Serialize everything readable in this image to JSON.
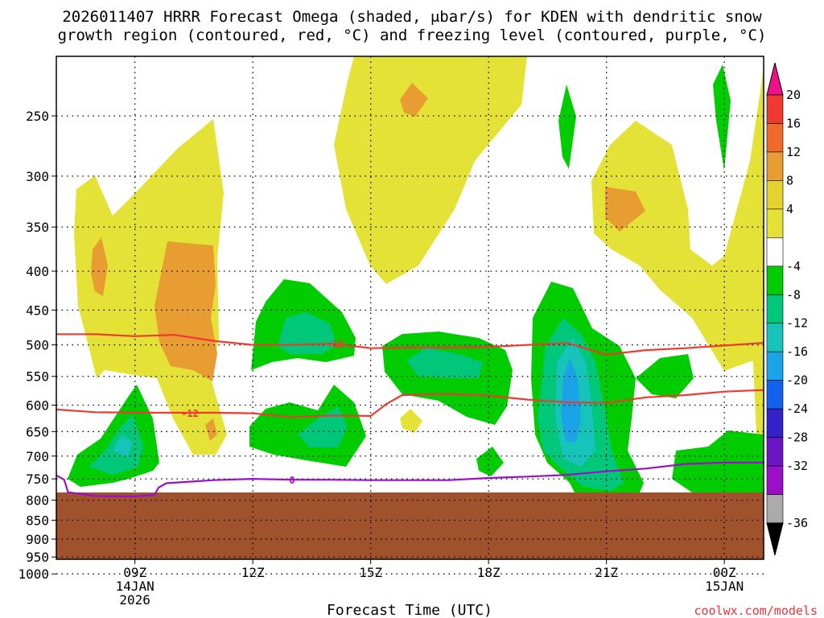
{
  "chart_data": {
    "type": "contour",
    "title_lines": [
      "2026011407 HRRR Forecast Omega (shaded, μbar/s) for KDEN with dendritic snow",
      "growth region (contoured, red, °C) and freezing level (contoured, purple, °C)"
    ],
    "xlabel": "Forecast Time (UTC)",
    "credit": "coolwx.com/models",
    "x_range_hours": [
      7.0,
      25.0
    ],
    "x_ticks": [
      {
        "hour": 9,
        "lines": [
          "09Z",
          "14JAN",
          "2026"
        ]
      },
      {
        "hour": 12,
        "lines": [
          "12Z"
        ]
      },
      {
        "hour": 15,
        "lines": [
          "15Z"
        ]
      },
      {
        "hour": 18,
        "lines": [
          "18Z"
        ]
      },
      {
        "hour": 21,
        "lines": [
          "21Z"
        ]
      },
      {
        "hour": 24,
        "lines": [
          "00Z",
          "15JAN"
        ]
      }
    ],
    "y_ticks": [
      250,
      300,
      350,
      400,
      450,
      500,
      550,
      600,
      650,
      700,
      750,
      800,
      850,
      900,
      950,
      1000
    ],
    "colorbar": {
      "ticks": [
        "20",
        "16",
        "12",
        "8",
        "4",
        "-4",
        "-8",
        "-12",
        "-16",
        "-20",
        "-24",
        "-28",
        "-32",
        "-36"
      ],
      "colors": [
        "#ee1189",
        "#ee3a30",
        "#ee6a2a",
        "#e79d31",
        "#e6d22f",
        "#e4e236",
        "#ffffff",
        "#00cc00",
        "#00c779",
        "#16c4b9",
        "#1aa3e6",
        "#1261ed",
        "#3421c9",
        "#6a16c4",
        "#9a10c7",
        "#aaaaaa",
        "#000000"
      ]
    },
    "contours": [
      {
        "name": "dendritic upper bound",
        "color": "#ee3a30",
        "label": "-18",
        "points": [
          [
            7.0,
            484
          ],
          [
            8.0,
            484
          ],
          [
            9.0,
            487
          ],
          [
            10.0,
            485
          ],
          [
            11.0,
            494
          ],
          [
            12.0,
            500
          ],
          [
            13.0,
            500
          ],
          [
            14.0,
            498
          ],
          [
            15.0,
            505
          ],
          [
            16.0,
            504
          ],
          [
            17.0,
            504
          ],
          [
            18.0,
            503
          ],
          [
            19.0,
            500
          ],
          [
            20.0,
            497
          ],
          [
            21.0,
            515
          ],
          [
            22.0,
            508
          ],
          [
            23.0,
            505
          ],
          [
            24.0,
            501
          ],
          [
            25.0,
            497
          ]
        ]
      },
      {
        "name": "dendritic lower bound",
        "color": "#ee3a30",
        "label": "-12",
        "points": [
          [
            7.0,
            608
          ],
          [
            8.0,
            613
          ],
          [
            9.0,
            614
          ],
          [
            10.0,
            614
          ],
          [
            11.0,
            614
          ],
          [
            12.0,
            615
          ],
          [
            13.0,
            622
          ],
          [
            14.0,
            619
          ],
          [
            15.0,
            620
          ],
          [
            15.4,
            598
          ],
          [
            15.8,
            582
          ],
          [
            17.0,
            580
          ],
          [
            18.0,
            583
          ],
          [
            19.0,
            590
          ],
          [
            20.0,
            595
          ],
          [
            21.0,
            596
          ],
          [
            22.0,
            586
          ],
          [
            23.0,
            582
          ],
          [
            24.0,
            576
          ],
          [
            25.0,
            573
          ]
        ]
      },
      {
        "name": "freezing level",
        "color": "#9a10c7",
        "label": "0",
        "points": [
          [
            7.0,
            742
          ],
          [
            7.2,
            752
          ],
          [
            7.3,
            781
          ],
          [
            8.0,
            790
          ],
          [
            9.0,
            791
          ],
          [
            9.5,
            787
          ],
          [
            9.6,
            770
          ],
          [
            9.8,
            760
          ],
          [
            11.0,
            753
          ],
          [
            12.0,
            750
          ],
          [
            13.0,
            752
          ],
          [
            14.0,
            752
          ],
          [
            15.0,
            753
          ],
          [
            16.0,
            753
          ],
          [
            17.0,
            753
          ],
          [
            18.0,
            748
          ],
          [
            19.0,
            745
          ],
          [
            20.0,
            741
          ],
          [
            21.0,
            733
          ],
          [
            22.0,
            727
          ],
          [
            23.0,
            717
          ],
          [
            24.0,
            714
          ],
          [
            25.0,
            714
          ]
        ]
      }
    ]
  }
}
